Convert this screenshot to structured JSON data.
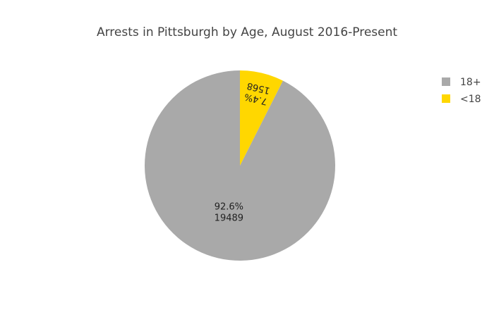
{
  "chart_data": {
    "type": "pie",
    "title": "Arrests in Pittsburgh by Age, August 2016-Present",
    "slices": [
      {
        "label": "18+",
        "value": 19489,
        "percent_text": "92.6%",
        "value_text": "19489",
        "color": "#a9a9a9"
      },
      {
        "label": "<18",
        "value": 1568,
        "percent_text": "7.4%",
        "value_text": "1568",
        "color": "#ffd700"
      }
    ],
    "legend_position": "top-right",
    "direction": "counterclockwise",
    "start": "top"
  }
}
